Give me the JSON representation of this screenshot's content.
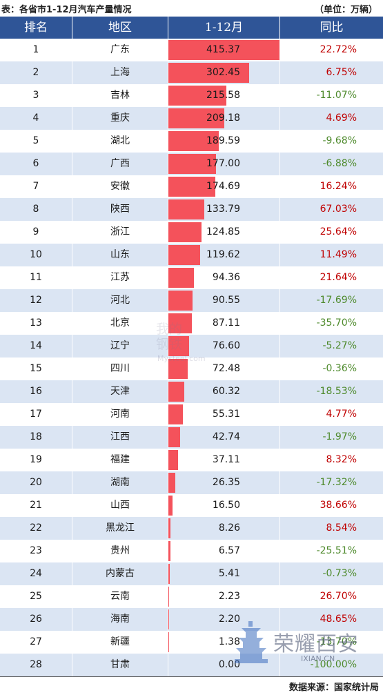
{
  "title": "表：各省市1-12月汽车产量情况",
  "unit": "（单位：万辆）",
  "colors": {
    "header_bg": "#2f5597",
    "bar": "#f4525b",
    "stripe": "#dbe5f3",
    "positive": "#c00000",
    "negative": "#4e8a2c"
  },
  "chart_data": {
    "type": "table",
    "columns": [
      "排名",
      "地区",
      "1-12月",
      "同比"
    ],
    "xlim": [
      0,
      415.37
    ],
    "rows": [
      {
        "rank": "1",
        "region": "广东",
        "value": 415.37,
        "value_label": "415.37",
        "yoy": "22.72%"
      },
      {
        "rank": "2",
        "region": "上海",
        "value": 302.45,
        "value_label": "302.45",
        "yoy": "6.75%"
      },
      {
        "rank": "3",
        "region": "吉林",
        "value": 215.58,
        "value_label": "215.58",
        "yoy": "-11.07%"
      },
      {
        "rank": "4",
        "region": "重庆",
        "value": 209.18,
        "value_label": "209.18",
        "yoy": "4.69%"
      },
      {
        "rank": "5",
        "region": "湖北",
        "value": 189.59,
        "value_label": "189.59",
        "yoy": "-9.68%"
      },
      {
        "rank": "6",
        "region": "广西",
        "value": 177.0,
        "value_label": "177.00",
        "yoy": "-6.88%"
      },
      {
        "rank": "7",
        "region": "安徽",
        "value": 174.69,
        "value_label": "174.69",
        "yoy": "16.24%"
      },
      {
        "rank": "8",
        "region": "陕西",
        "value": 133.79,
        "value_label": "133.79",
        "yoy": "67.03%"
      },
      {
        "rank": "9",
        "region": "浙江",
        "value": 124.85,
        "value_label": "124.85",
        "yoy": "25.64%"
      },
      {
        "rank": "10",
        "region": "山东",
        "value": 119.62,
        "value_label": "119.62",
        "yoy": "11.49%"
      },
      {
        "rank": "11",
        "region": "江苏",
        "value": 94.36,
        "value_label": "94.36",
        "yoy": "21.64%"
      },
      {
        "rank": "12",
        "region": "河北",
        "value": 90.55,
        "value_label": "90.55",
        "yoy": "-17.69%"
      },
      {
        "rank": "13",
        "region": "北京",
        "value": 87.11,
        "value_label": "87.11",
        "yoy": "-35.70%"
      },
      {
        "rank": "14",
        "region": "辽宁",
        "value": 76.6,
        "value_label": "76.60",
        "yoy": "-5.27%"
      },
      {
        "rank": "15",
        "region": "四川",
        "value": 72.48,
        "value_label": "72.48",
        "yoy": "-0.36%"
      },
      {
        "rank": "16",
        "region": "天津",
        "value": 60.32,
        "value_label": "60.32",
        "yoy": "-18.53%"
      },
      {
        "rank": "17",
        "region": "河南",
        "value": 55.31,
        "value_label": "55.31",
        "yoy": "4.77%"
      },
      {
        "rank": "18",
        "region": "江西",
        "value": 42.74,
        "value_label": "42.74",
        "yoy": "-1.97%"
      },
      {
        "rank": "19",
        "region": "福建",
        "value": 37.11,
        "value_label": "37.11",
        "yoy": "8.32%"
      },
      {
        "rank": "20",
        "region": "湖南",
        "value": 26.35,
        "value_label": "26.35",
        "yoy": "-17.32%"
      },
      {
        "rank": "21",
        "region": "山西",
        "value": 16.5,
        "value_label": "16.50",
        "yoy": "38.66%"
      },
      {
        "rank": "22",
        "region": "黑龙江",
        "value": 8.26,
        "value_label": "8.26",
        "yoy": "8.54%"
      },
      {
        "rank": "23",
        "region": "贵州",
        "value": 6.57,
        "value_label": "6.57",
        "yoy": "-25.51%"
      },
      {
        "rank": "24",
        "region": "内蒙古",
        "value": 5.41,
        "value_label": "5.41",
        "yoy": "-0.73%"
      },
      {
        "rank": "25",
        "region": "云南",
        "value": 2.23,
        "value_label": "2.23",
        "yoy": "26.70%"
      },
      {
        "rank": "26",
        "region": "海南",
        "value": 2.2,
        "value_label": "2.20",
        "yoy": "48.65%"
      },
      {
        "rank": "27",
        "region": "新疆",
        "value": 1.38,
        "value_label": "1.38",
        "yoy": "-13.70%"
      },
      {
        "rank": "28",
        "region": "甘肃",
        "value": 0.0,
        "value_label": "0.00",
        "yoy": "-100.00%"
      }
    ]
  },
  "watermark": {
    "line1": "我的",
    "line2": "钢铁",
    "site": "Mysteel.com"
  },
  "logo": {
    "text": "荣耀西安",
    "url": "IXIAN.CN",
    "icon": "pagoda-icon"
  },
  "source": "数据来源：国家统计局"
}
